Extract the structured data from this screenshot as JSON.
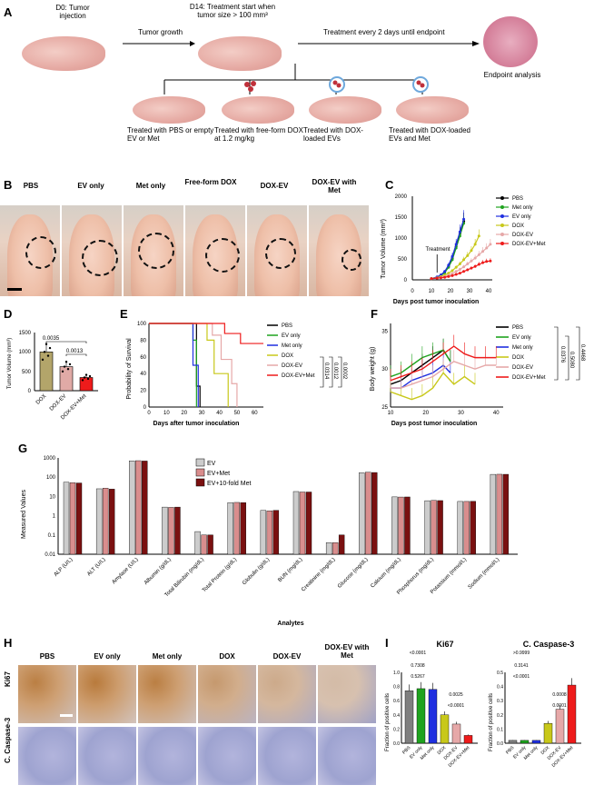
{
  "colors": {
    "pbs": "#000000",
    "met": "#1fa31f",
    "ev": "#1f2fe0",
    "dox": "#c8c81a",
    "doxev": "#e6a8a8",
    "doxevmet": "#ee1b1b",
    "evBar": "#cccccc",
    "evmetBar": "#d98d8d",
    "ev10Bar": "#7a1010",
    "ki67": "#b5722e",
    "hematox": "#8c93c9"
  },
  "panelA": {
    "label": "A",
    "d0": "D0: Tumor injection",
    "growth": "Tumor growth",
    "d14": "D14: Treatment start when tumor size > 100 mm³",
    "every": "Treatment every 2 days until endpoint",
    "endpoint": "Endpoint analysis",
    "t1": "Treated with PBS or empty EV or Met",
    "t2": "Treated with free-form DOX at 1.2 mg/kg",
    "t3": "Treated with DOX-loaded EVs",
    "t4": "Treated with DOX-loaded EVs and Met"
  },
  "panelB": {
    "label": "B",
    "groups": [
      "PBS",
      "EV only",
      "Met only",
      "Free-form DOX",
      "DOX-EV",
      "DOX-EV with Met"
    ]
  },
  "panelC": {
    "label": "C",
    "ylabel": "Tumor Volume (mm³)",
    "xlabel": "Days post tumor inoculation",
    "annot": "Treatment",
    "yticks": [
      "0",
      "500",
      "1000",
      "1500",
      "2000"
    ],
    "xticks": [
      "0",
      "10",
      "20",
      "30",
      "40"
    ],
    "legend": [
      "PBS",
      "Met only",
      "EV only",
      "DOX",
      "DOX-EV",
      "DOX-EV+Met"
    ]
  },
  "panelD": {
    "label": "D",
    "ylabel": "Tumor Volume (mm³)",
    "yticks": [
      "0",
      "500",
      "1000",
      "1500"
    ],
    "cats": [
      "DOX",
      "DOX-EV",
      "DOX-EV+Met"
    ],
    "p1": "0.0035",
    "p2": "0.0013"
  },
  "panelE": {
    "label": "E",
    "ylabel": "Probability of Survival",
    "xlabel": "Days after tumor inoculation",
    "yticks": [
      "0",
      "20",
      "40",
      "60",
      "80",
      "100"
    ],
    "xticks": [
      "0",
      "10",
      "20",
      "30",
      "40",
      "50",
      "60"
    ],
    "legend": [
      "PBS",
      "EV only",
      "Met only",
      "DOX",
      "DOX-EV",
      "DOX-EV+Met"
    ],
    "p": [
      "0.0314",
      "0.0012",
      "0.0002"
    ]
  },
  "panelF": {
    "label": "F",
    "ylabel": "Body weight (g)",
    "xlabel": "Days post tumor inoculation",
    "yticks": [
      "25",
      "30",
      "35"
    ],
    "xticks": [
      "10",
      "20",
      "30",
      "40"
    ],
    "legend": [
      "PBS",
      "EV only",
      "Met only",
      "DOX",
      "DOX-EV",
      "DOX-EV+Met"
    ],
    "p": [
      "0.0376",
      "0.5080",
      "0.4468"
    ]
  },
  "panelG": {
    "label": "G",
    "ylabel": "Measured Values",
    "xlabel": "Analytes",
    "yticks": [
      "1000",
      "100",
      "10",
      "1",
      "0.1",
      "0.01"
    ],
    "legend": [
      "EV",
      "EV+Met",
      "EV+10-fold Met"
    ],
    "analytes": [
      "ALP (U/L)",
      "ALT (U/L)",
      "Amylase (U/L)",
      "Albumin (g/dL)",
      "Total Bilirubin (mg/dL)",
      "Total Protein (g/dL)",
      "Globulin (g/dL)",
      "BUN (mg/dL)",
      "Creatinine (mg/dL)",
      "Glucose (mg/dL)",
      "Calcium (mg/dL)",
      "Phosphorus (mg/dL)",
      "Potassium (mmol/L)",
      "Sodium (mmol/L)"
    ]
  },
  "panelH": {
    "label": "H",
    "cols": [
      "PBS",
      "EV only",
      "Met only",
      "DOX",
      "DOX-EV",
      "DOX-EV with Met"
    ],
    "rows": [
      "Ki67",
      "C. Caspase-3"
    ]
  },
  "panelI": {
    "label": "I",
    "title1": "Ki67",
    "title2": "C. Caspase-3",
    "ylabel": "Fraction of positive cells",
    "yticks1": [
      "0.0",
      "0.2",
      "0.4",
      "0.6",
      "0.8",
      "1.0"
    ],
    "yticks2": [
      "0.0",
      "0.1",
      "0.2",
      "0.3",
      "0.4",
      "0.5"
    ],
    "cats": [
      "PBS",
      "EV only",
      "Met only",
      "DOX",
      "DOX-EV",
      "DOX-EV+Met"
    ],
    "p1": [
      "<0.0001",
      "0.7308",
      "0.5267",
      "0.0025",
      "<0.0001"
    ],
    "p2": [
      ">0.9999",
      "0.3141",
      "<0.0001",
      "0.0008",
      "0.0001"
    ]
  },
  "chart_data": [
    {
      "type": "line",
      "panel": "C",
      "ylabel": "Tumor Volume (mm³)",
      "xlabel": "Days post tumor inoculation",
      "ylim": [
        0,
        2000
      ],
      "xlim": [
        0,
        42
      ],
      "series": [
        {
          "name": "PBS",
          "x": [
            10,
            13,
            15,
            17,
            19,
            21,
            23,
            25,
            27
          ],
          "y": [
            30,
            60,
            110,
            180,
            320,
            520,
            800,
            1100,
            1400
          ]
        },
        {
          "name": "Met only",
          "x": [
            10,
            13,
            15,
            17,
            19,
            21,
            23,
            25,
            27
          ],
          "y": [
            30,
            60,
            100,
            170,
            300,
            480,
            760,
            1050,
            1350
          ]
        },
        {
          "name": "EV only",
          "x": [
            10,
            13,
            15,
            17,
            19,
            21,
            23,
            25,
            27
          ],
          "y": [
            30,
            70,
            120,
            200,
            350,
            560,
            850,
            1150,
            1450
          ]
        },
        {
          "name": "DOX",
          "x": [
            10,
            13,
            15,
            17,
            19,
            21,
            23,
            25,
            27,
            29,
            31,
            33,
            35
          ],
          "y": [
            30,
            50,
            80,
            110,
            160,
            220,
            300,
            380,
            480,
            580,
            700,
            850,
            1050
          ]
        },
        {
          "name": "DOX-EV",
          "x": [
            10,
            13,
            15,
            17,
            19,
            21,
            23,
            25,
            27,
            29,
            31,
            33,
            35,
            37,
            39,
            41
          ],
          "y": [
            30,
            40,
            60,
            80,
            110,
            150,
            200,
            250,
            310,
            380,
            450,
            520,
            600,
            680,
            760,
            850
          ]
        },
        {
          "name": "DOX-EV+Met",
          "x": [
            10,
            13,
            15,
            17,
            19,
            21,
            23,
            25,
            27,
            29,
            31,
            33,
            35,
            37,
            39,
            41
          ],
          "y": [
            30,
            40,
            50,
            60,
            80,
            100,
            130,
            160,
            200,
            240,
            280,
            320,
            370,
            410,
            440,
            450
          ]
        }
      ]
    },
    {
      "type": "bar",
      "panel": "D",
      "categories": [
        "DOX",
        "DOX-EV",
        "DOX-EV+Met"
      ],
      "values": [
        1000,
        620,
        340
      ],
      "ylim": [
        0,
        1500
      ]
    },
    {
      "type": "line",
      "panel": "E",
      "ylabel": "Probability of Survival",
      "xlabel": "Days after tumor inoculation",
      "ylim": [
        0,
        100
      ],
      "xlim": [
        0,
        65
      ],
      "series": [
        {
          "name": "PBS",
          "x": [
            0,
            27,
            27,
            29,
            29
          ],
          "y": [
            100,
            100,
            25,
            25,
            0
          ]
        },
        {
          "name": "EV only",
          "x": [
            0,
            25,
            25,
            27,
            27
          ],
          "y": [
            100,
            100,
            80,
            80,
            0
          ]
        },
        {
          "name": "Met only",
          "x": [
            0,
            25,
            25,
            28,
            28
          ],
          "y": [
            100,
            100,
            50,
            50,
            0
          ]
        },
        {
          "name": "DOX",
          "x": [
            0,
            33,
            33,
            37,
            37,
            45,
            45
          ],
          "y": [
            100,
            100,
            80,
            80,
            40,
            40,
            0
          ]
        },
        {
          "name": "DOX-EV",
          "x": [
            0,
            36,
            36,
            41,
            41,
            47,
            47,
            50,
            50
          ],
          "y": [
            100,
            100,
            86,
            86,
            57,
            57,
            28,
            28,
            0
          ]
        },
        {
          "name": "DOX-EV+Met",
          "x": [
            0,
            43,
            43,
            52,
            52,
            65
          ],
          "y": [
            100,
            100,
            88,
            88,
            76,
            76
          ]
        }
      ]
    },
    {
      "type": "line",
      "panel": "F",
      "ylabel": "Body weight (g)",
      "xlabel": "Days post tumor inoculation",
      "ylim": [
        25,
        36
      ],
      "xlim": [
        10,
        42
      ],
      "series": [
        {
          "name": "PBS",
          "x": [
            10,
            13,
            16,
            19,
            22,
            25,
            27
          ],
          "y": [
            28,
            28.5,
            29.5,
            30.5,
            31.5,
            32.5,
            31
          ]
        },
        {
          "name": "EV only",
          "x": [
            10,
            13,
            16,
            19,
            22,
            25,
            27
          ],
          "y": [
            29,
            29.5,
            30.5,
            31.5,
            32,
            32.5,
            31
          ]
        },
        {
          "name": "Met only",
          "x": [
            10,
            13,
            16,
            19,
            22,
            25,
            27
          ],
          "y": [
            27.5,
            27.5,
            28.5,
            29,
            29.5,
            30.5,
            29.5
          ]
        },
        {
          "name": "DOX",
          "x": [
            10,
            13,
            16,
            19,
            22,
            25,
            28,
            31,
            34
          ],
          "y": [
            27,
            26.5,
            26,
            26.5,
            27.5,
            29.5,
            28,
            29,
            28
          ]
        },
        {
          "name": "DOX-EV",
          "x": [
            10,
            13,
            16,
            19,
            22,
            25,
            28,
            31,
            34,
            37,
            40
          ],
          "y": [
            27.5,
            27.5,
            28,
            28.5,
            29,
            30,
            31,
            30.5,
            30,
            30.5,
            30.5
          ]
        },
        {
          "name": "DOX-EV+Met",
          "x": [
            10,
            13,
            16,
            19,
            22,
            25,
            28,
            31,
            34,
            37,
            40
          ],
          "y": [
            28.5,
            29,
            29.5,
            30,
            31,
            32,
            33,
            32,
            31.5,
            31.5,
            31.5
          ]
        }
      ]
    },
    {
      "type": "bar",
      "panel": "G",
      "log": true,
      "ylim": [
        0.01,
        1000
      ],
      "categories": [
        "ALP (U/L)",
        "ALT (U/L)",
        "Amylase (U/L)",
        "Albumin (g/dL)",
        "Total Bilirubin (mg/dL)",
        "Total Protein (g/dL)",
        "Globulin (g/dL)",
        "BUN (mg/dL)",
        "Creatinine (mg/dL)",
        "Glucose (mg/dL)",
        "Calcium (mg/dL)",
        "Phosphorus (mg/dL)",
        "Potassium (mmol/L)",
        "Sodium (mmol/L)"
      ],
      "series": [
        {
          "name": "EV",
          "values": [
            55,
            25,
            700,
            2.8,
            0.15,
            4.8,
            1.9,
            18,
            0.04,
            170,
            9.5,
            6,
            5.5,
            140
          ]
        },
        {
          "name": "EV+Met",
          "values": [
            52,
            27,
            720,
            2.7,
            0.1,
            4.9,
            1.8,
            17,
            0.04,
            180,
            9.3,
            6.2,
            5.5,
            142
          ]
        },
        {
          "name": "EV+10-fold Met",
          "values": [
            50,
            24,
            690,
            2.8,
            0.1,
            4.8,
            1.9,
            17,
            0.1,
            175,
            9.4,
            6.1,
            5.6,
            141
          ]
        }
      ]
    },
    {
      "type": "bar",
      "panel": "I-Ki67",
      "categories": [
        "PBS",
        "EV only",
        "Met only",
        "DOX",
        "DOX-EV",
        "DOX-EV+Met"
      ],
      "values": [
        0.74,
        0.77,
        0.76,
        0.4,
        0.27,
        0.11
      ],
      "ylim": [
        0,
        1.0
      ]
    },
    {
      "type": "bar",
      "panel": "I-Caspase3",
      "categories": [
        "PBS",
        "EV only",
        "Met only",
        "DOX",
        "DOX-EV",
        "DOX-EV+Met"
      ],
      "values": [
        0.02,
        0.02,
        0.02,
        0.14,
        0.24,
        0.41
      ],
      "ylim": [
        0,
        0.5
      ]
    }
  ]
}
